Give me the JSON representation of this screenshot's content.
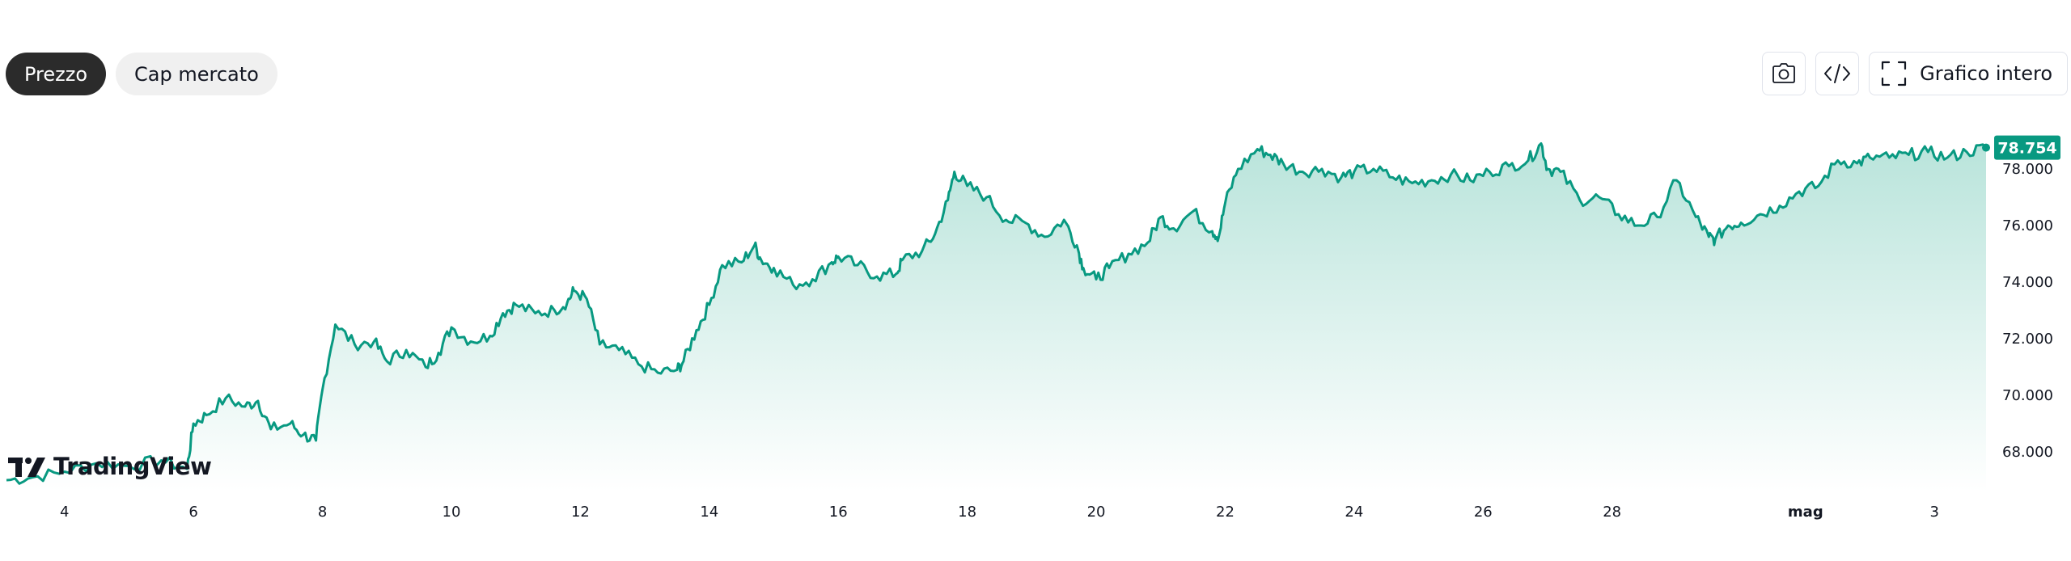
{
  "tabs": [
    {
      "label": "Prezzo",
      "active": true
    },
    {
      "label": "Cap mercato",
      "active": false
    }
  ],
  "toolbar": {
    "snapshot_icon": "camera-icon",
    "embed_icon": "code-icon",
    "fullscreen_icon": "fullscreen-icon",
    "fullscreen_label": "Grafico intero"
  },
  "branding": {
    "logo_text": "TradingView"
  },
  "colors": {
    "line": "#089981",
    "fill_top": "#b9e4db",
    "fill_bottom": "#ffffff",
    "price_tag": "#089981",
    "text": "#131722"
  },
  "chart_data": {
    "type": "area",
    "last_price_label": "78.754",
    "last_price": 78.754,
    "y_ticks": [
      {
        "value": 68,
        "label": "68.000"
      },
      {
        "value": 70,
        "label": "70.000"
      },
      {
        "value": 72,
        "label": "72.000"
      },
      {
        "value": 74,
        "label": "74.000"
      },
      {
        "value": 76,
        "label": "76.000"
      },
      {
        "value": 78,
        "label": "78.000"
      }
    ],
    "x_ticks": [
      {
        "day": 4,
        "label": "4"
      },
      {
        "day": 6,
        "label": "6"
      },
      {
        "day": 8,
        "label": "8"
      },
      {
        "day": 10,
        "label": "10"
      },
      {
        "day": 12,
        "label": "12"
      },
      {
        "day": 14,
        "label": "14"
      },
      {
        "day": 16,
        "label": "16"
      },
      {
        "day": 18,
        "label": "18"
      },
      {
        "day": 20,
        "label": "20"
      },
      {
        "day": 22,
        "label": "22"
      },
      {
        "day": 24,
        "label": "24"
      },
      {
        "day": 26,
        "label": "26"
      },
      {
        "day": 28,
        "label": "28"
      },
      {
        "day": 31,
        "label": "mag",
        "bold": true
      },
      {
        "day": 33,
        "label": "3"
      }
    ],
    "ylim": [
      66.6,
      79.4
    ],
    "xlim": [
      3.1,
      33.8
    ],
    "grid": false,
    "series": [
      {
        "x": [
          3.1,
          3.5,
          4.0,
          4.5,
          5.0,
          5.5,
          5.9,
          6.0,
          6.2,
          6.5,
          6.8,
          7.0,
          7.2,
          7.5,
          7.7,
          7.9,
          8.0,
          8.2,
          8.5,
          8.8,
          9.0,
          9.3,
          9.6,
          9.8,
          10.0,
          10.3,
          10.6,
          10.8,
          11.0,
          11.3,
          11.6,
          11.8,
          11.9,
          12.1,
          12.3,
          12.6,
          12.9,
          13.2,
          13.5,
          13.6,
          13.8,
          14.0,
          14.2,
          14.5,
          14.7,
          14.8,
          15.0,
          15.3,
          15.6,
          15.9,
          16.0,
          16.3,
          16.6,
          16.9,
          17.0,
          17.3,
          17.5,
          17.7,
          17.8,
          18.0,
          18.3,
          18.6,
          18.9,
          19.2,
          19.5,
          19.7,
          19.8,
          20.0,
          20.2,
          20.5,
          20.8,
          21.0,
          21.2,
          21.5,
          21.8,
          21.9,
          22.0,
          22.2,
          22.5,
          22.7,
          22.9,
          23.2,
          23.5,
          23.8,
          24.0,
          24.3,
          24.6,
          24.9,
          25.2,
          25.5,
          25.8,
          26.1,
          26.4,
          26.7,
          26.9,
          27.0,
          27.2,
          27.5,
          27.8,
          28.1,
          28.4,
          28.7,
          29.0,
          29.3,
          29.5,
          29.6,
          29.8,
          30.0,
          30.3,
          30.6,
          30.9,
          31.2,
          31.5,
          31.8,
          32.0,
          32.3,
          32.6,
          32.9,
          33.2,
          33.5,
          33.8
        ],
        "values": [
          67.0,
          67.1,
          67.3,
          67.6,
          67.5,
          67.7,
          67.4,
          69.0,
          69.3,
          69.9,
          69.6,
          69.8,
          68.8,
          69.0,
          68.6,
          68.4,
          70.2,
          72.5,
          71.8,
          71.9,
          71.2,
          71.6,
          71.0,
          71.5,
          72.4,
          71.9,
          72.1,
          72.9,
          73.2,
          72.9,
          73.0,
          73.3,
          73.7,
          73.4,
          71.8,
          71.6,
          71.1,
          70.8,
          70.9,
          71.2,
          72.3,
          73.2,
          74.6,
          74.7,
          75.3,
          74.8,
          74.5,
          73.9,
          74.1,
          74.7,
          74.9,
          74.6,
          74.2,
          74.3,
          74.8,
          75.1,
          75.7,
          76.9,
          77.9,
          77.4,
          77.0,
          76.2,
          76.1,
          75.6,
          76.2,
          75.3,
          74.5,
          74.1,
          74.5,
          75.0,
          75.4,
          76.3,
          75.9,
          76.5,
          75.8,
          75.6,
          76.8,
          78.0,
          78.7,
          78.5,
          78.2,
          77.9,
          78.0,
          77.7,
          77.9,
          78.0,
          77.7,
          77.5,
          77.6,
          77.8,
          77.6,
          77.9,
          78.1,
          78.3,
          78.9,
          78.0,
          77.9,
          76.9,
          77.0,
          76.4,
          76.0,
          76.3,
          77.6,
          76.3,
          75.6,
          75.5,
          76.0,
          76.1,
          76.4,
          76.7,
          77.2,
          77.4,
          78.3,
          78.2,
          78.4,
          78.4,
          78.5,
          78.6,
          78.4,
          78.6,
          78.754
        ]
      }
    ]
  }
}
